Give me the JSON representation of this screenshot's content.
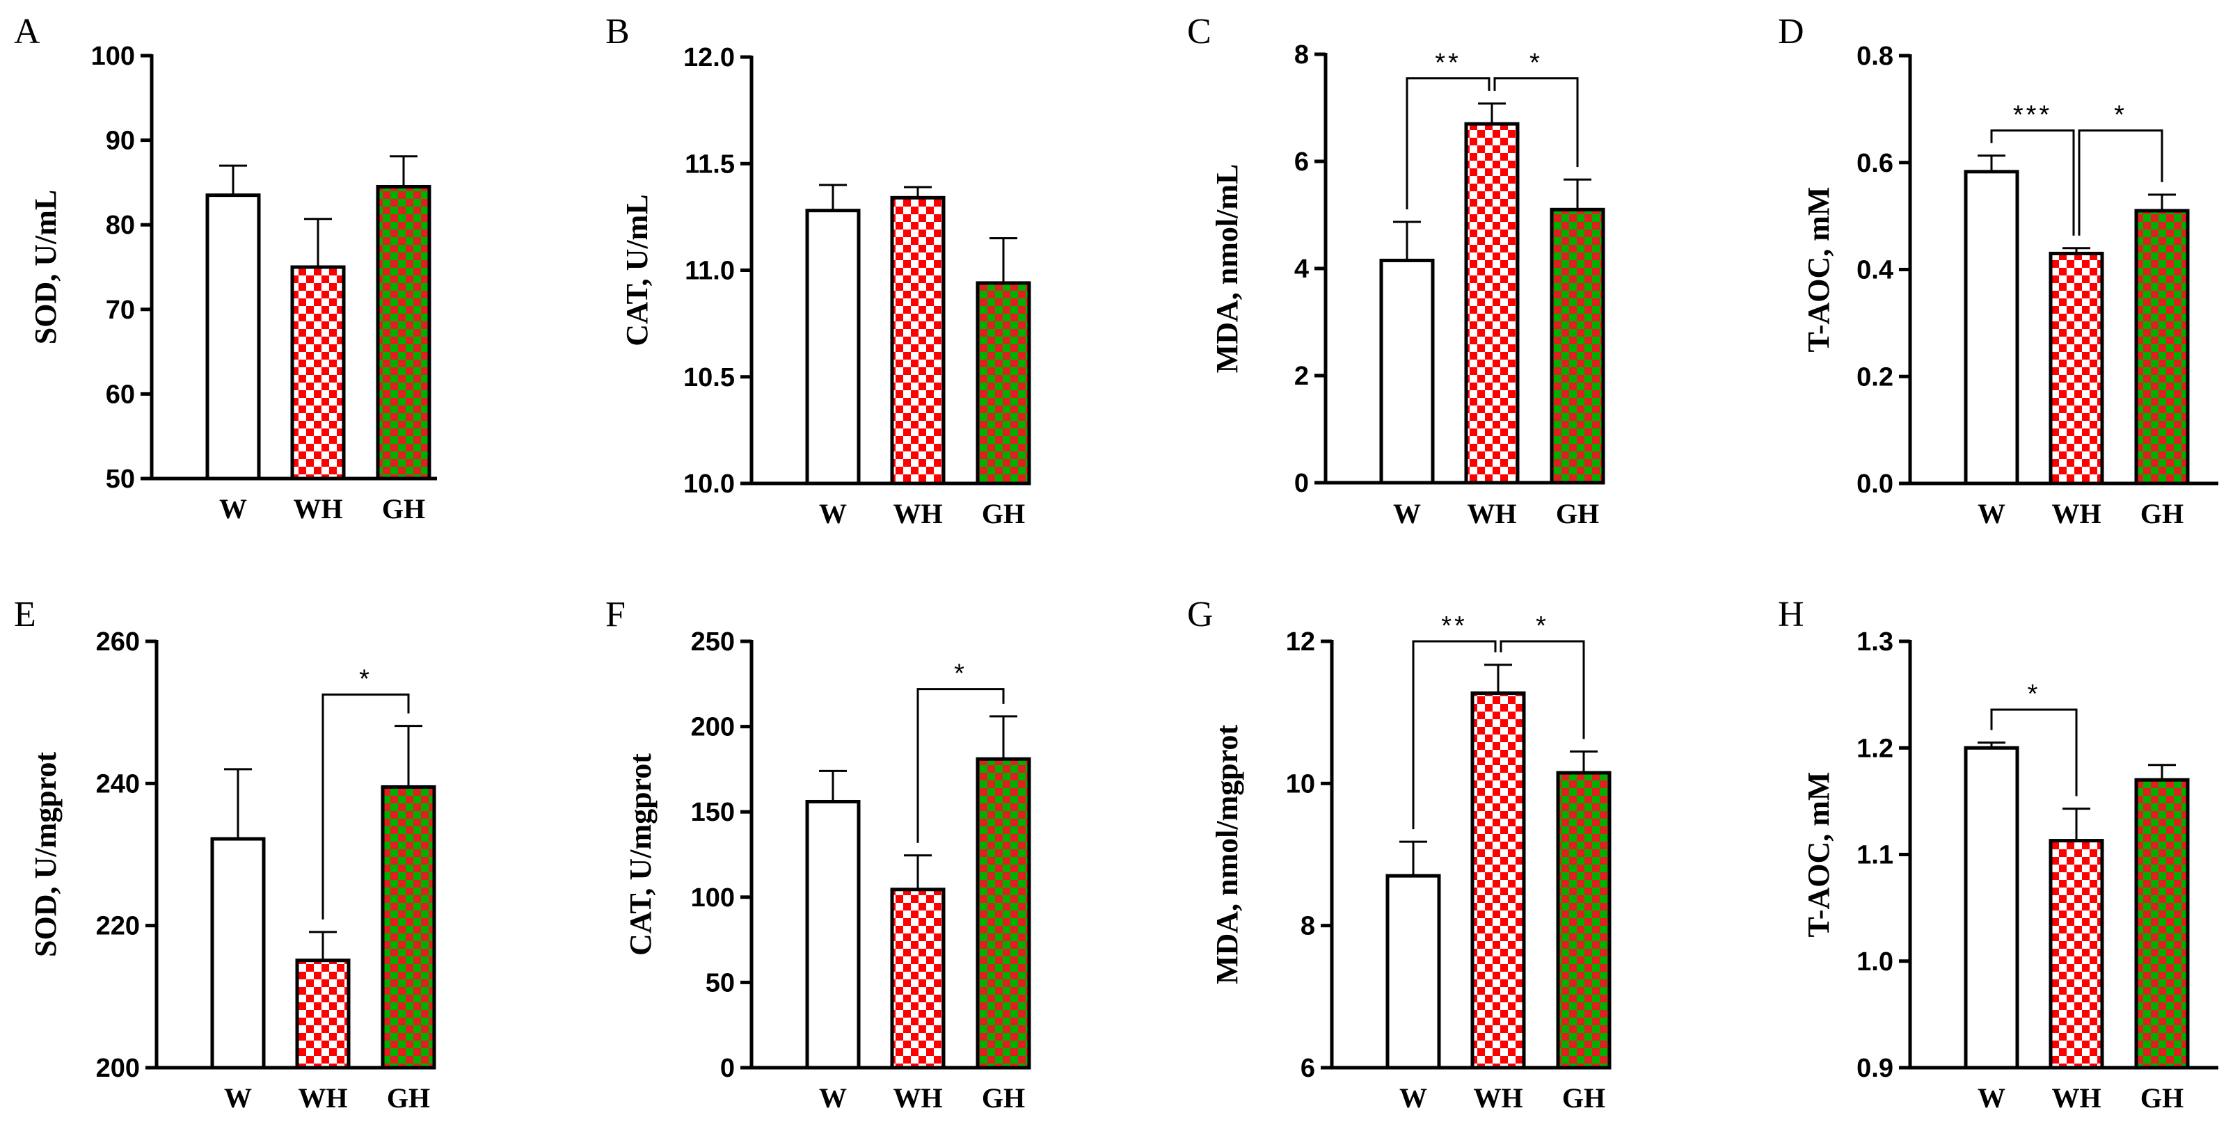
{
  "colors": {
    "W": "#ffffff",
    "WH_a": "#ff0000",
    "WH_b": "#ffffff",
    "GH_a": "#00b000",
    "GH_b": "#e02020",
    "axis": "#000000"
  },
  "chart_data": [
    {
      "panel": "A",
      "type": "bar",
      "ylabel": "SOD, U/mL",
      "categories": [
        "W",
        "WH",
        "GH"
      ],
      "values": [
        83.5,
        75.0,
        84.5
      ],
      "errors": [
        3.5,
        5.7,
        3.6
      ],
      "ylim": [
        50,
        100
      ],
      "yticks": [
        "50",
        "60",
        "70",
        "80",
        "90",
        "100"
      ],
      "significance": []
    },
    {
      "panel": "B",
      "type": "bar",
      "ylabel": "CAT, U/mL",
      "categories": [
        "W",
        "WH",
        "GH"
      ],
      "values": [
        11.28,
        11.34,
        10.94
      ],
      "errors": [
        0.12,
        0.05,
        0.21
      ],
      "ylim": [
        10.0,
        12.0
      ],
      "yticks": [
        "10.0",
        "10.5",
        "11.0",
        "11.5",
        "12.0"
      ],
      "significance": []
    },
    {
      "panel": "C",
      "type": "bar",
      "ylabel": "MDA, nmol/mL",
      "categories": [
        "W",
        "WH",
        "GH"
      ],
      "values": [
        4.15,
        6.7,
        5.1
      ],
      "errors": [
        0.72,
        0.38,
        0.56
      ],
      "ylim": [
        0,
        8
      ],
      "yticks": [
        "0",
        "2",
        "4",
        "6",
        "8"
      ],
      "significance": [
        {
          "from": 0,
          "to": 1,
          "label": "**",
          "y": 7.55
        },
        {
          "from": 1,
          "to": 2,
          "label": "*",
          "y": 7.55
        }
      ]
    },
    {
      "panel": "D",
      "type": "bar",
      "ylabel": "T-AOC, mM",
      "categories": [
        "W",
        "WH",
        "GH"
      ],
      "values": [
        0.583,
        0.43,
        0.51
      ],
      "errors": [
        0.03,
        0.01,
        0.03
      ],
      "ylim": [
        0.0,
        0.8
      ],
      "yticks": [
        "0.0",
        "0.2",
        "0.4",
        "0.6",
        "0.8"
      ],
      "significance": [
        {
          "from": 0,
          "to": 1,
          "label": "***",
          "y": 0.66
        },
        {
          "from": 1,
          "to": 2,
          "label": "*",
          "y": 0.66
        }
      ]
    },
    {
      "panel": "E",
      "type": "bar",
      "ylabel": "SOD, U/mgprot",
      "categories": [
        "W",
        "WH",
        "GH"
      ],
      "values": [
        232.2,
        215.1,
        239.5
      ],
      "errors": [
        9.8,
        4.0,
        8.6
      ],
      "ylim": [
        200,
        260
      ],
      "yticks": [
        "200",
        "220",
        "240",
        "260"
      ],
      "significance": [
        {
          "from": 1,
          "to": 2,
          "label": "*",
          "y": 252.5
        }
      ]
    },
    {
      "panel": "F",
      "type": "bar",
      "ylabel": "CAT, U/mgprot",
      "categories": [
        "W",
        "WH",
        "GH"
      ],
      "values": [
        156,
        104.5,
        181
      ],
      "errors": [
        18,
        20,
        25
      ],
      "ylim": [
        0,
        250
      ],
      "yticks": [
        "0",
        "50",
        "100",
        "150",
        "200",
        "250"
      ],
      "significance": [
        {
          "from": 1,
          "to": 2,
          "label": "*",
          "y": 222
        }
      ]
    },
    {
      "panel": "G",
      "type": "bar",
      "ylabel": "MDA, nmol/mgprot",
      "categories": [
        "W",
        "WH",
        "GH"
      ],
      "values": [
        8.7,
        11.27,
        10.15
      ],
      "errors": [
        0.48,
        0.4,
        0.3
      ],
      "ylim": [
        6,
        12
      ],
      "yticks": [
        "6",
        "8",
        "10",
        "12"
      ],
      "significance": [
        {
          "from": 0,
          "to": 1,
          "label": "**",
          "y": 12.0
        },
        {
          "from": 1,
          "to": 2,
          "label": "*",
          "y": 12.0
        }
      ]
    },
    {
      "panel": "H",
      "type": "bar",
      "ylabel": "T-AOC, mM",
      "categories": [
        "W",
        "WH",
        "GH"
      ],
      "values": [
        1.2,
        1.113,
        1.17
      ],
      "errors": [
        0.005,
        0.03,
        0.014
      ],
      "ylim": [
        0.9,
        1.3
      ],
      "yticks": [
        "0.9",
        "1.0",
        "1.1",
        "1.2",
        "1.3"
      ],
      "significance": [
        {
          "from": 0,
          "to": 1,
          "label": "*",
          "y": 1.236
        }
      ]
    }
  ]
}
